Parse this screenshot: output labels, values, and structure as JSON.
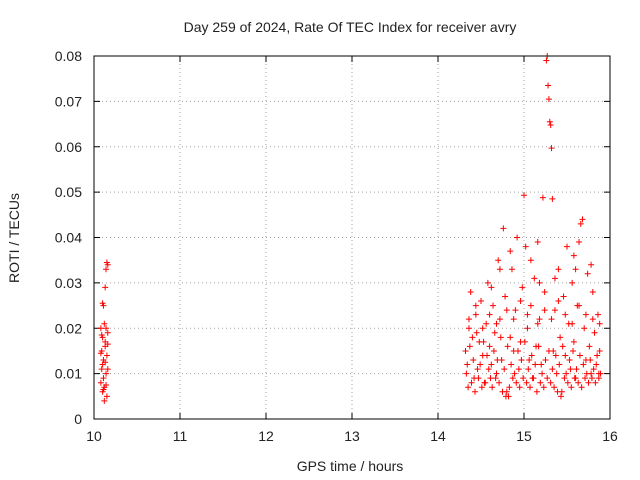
{
  "chart_data": {
    "type": "scatter",
    "title": "Day 259 of 2024, Rate Of TEC Index for receiver avry",
    "xlabel": "GPS time / hours",
    "ylabel": "ROTI / TECUs",
    "xlim": [
      10,
      16
    ],
    "ylim": [
      0,
      0.08
    ],
    "xticks": [
      10,
      11,
      12,
      13,
      14,
      15,
      16
    ],
    "xtick_labels": [
      "10",
      "11",
      "12",
      "13",
      "14",
      "15",
      "16"
    ],
    "yticks": [
      0,
      0.01,
      0.02,
      0.03,
      0.04,
      0.05,
      0.06,
      0.07,
      0.08
    ],
    "ytick_labels": [
      "0",
      "0.01",
      "0.02",
      "0.03",
      "0.04",
      "0.05",
      "0.06",
      "0.07",
      "0.08"
    ],
    "grid": true,
    "marker": "+",
    "color": "#ff0000",
    "series": [
      {
        "name": "ROTI",
        "points": [
          [
            10.08,
            0.02
          ],
          [
            10.09,
            0.015
          ],
          [
            10.1,
            0.018
          ],
          [
            10.1,
            0.012
          ],
          [
            10.11,
            0.009
          ],
          [
            10.12,
            0.021
          ],
          [
            10.13,
            0.017
          ],
          [
            10.14,
            0.01
          ],
          [
            10.15,
            0.014
          ],
          [
            10.16,
            0.019
          ],
          [
            10.08,
            0.008
          ],
          [
            10.09,
            0.011
          ],
          [
            10.1,
            0.006
          ],
          [
            10.11,
            0.013
          ],
          [
            10.12,
            0.007
          ],
          [
            10.13,
            0.016
          ],
          [
            10.14,
            0.02
          ],
          [
            10.15,
            0.005
          ],
          [
            10.12,
            0.004
          ],
          [
            10.16,
            0.011
          ],
          [
            10.1,
            0.0255
          ],
          [
            10.11,
            0.025
          ],
          [
            10.13,
            0.029
          ],
          [
            10.14,
            0.033
          ],
          [
            10.16,
            0.034
          ],
          [
            10.15,
            0.0345
          ],
          [
            10.09,
            0.0185
          ],
          [
            10.13,
            0.0125
          ],
          [
            10.11,
            0.0065
          ],
          [
            10.14,
            0.0075
          ],
          [
            10.16,
            0.0165
          ],
          [
            10.08,
            0.0145
          ],
          [
            14.32,
            0.015
          ],
          [
            14.34,
            0.012
          ],
          [
            14.36,
            0.02
          ],
          [
            14.38,
            0.028
          ],
          [
            14.4,
            0.018
          ],
          [
            14.42,
            0.009
          ],
          [
            14.44,
            0.023
          ],
          [
            14.46,
            0.011
          ],
          [
            14.48,
            0.017
          ],
          [
            14.5,
            0.026
          ],
          [
            14.52,
            0.014
          ],
          [
            14.54,
            0.008
          ],
          [
            14.56,
            0.021
          ],
          [
            14.58,
            0.03
          ],
          [
            14.6,
            0.016
          ],
          [
            14.62,
            0.012
          ],
          [
            14.64,
            0.025
          ],
          [
            14.66,
            0.019
          ],
          [
            14.68,
            0.01
          ],
          [
            14.7,
            0.035
          ],
          [
            14.72,
            0.022
          ],
          [
            14.74,
            0.013
          ],
          [
            14.76,
            0.042
          ],
          [
            14.78,
            0.027
          ],
          [
            14.8,
            0.006
          ],
          [
            14.82,
            0.005
          ],
          [
            14.84,
            0.018
          ],
          [
            14.86,
            0.033
          ],
          [
            14.88,
            0.015
          ],
          [
            14.9,
            0.024
          ],
          [
            14.92,
            0.04
          ],
          [
            14.94,
            0.011
          ],
          [
            14.96,
            0.017
          ],
          [
            14.98,
            0.029
          ],
          [
            15.0,
            0.0493
          ],
          [
            15.02,
            0.038
          ],
          [
            15.04,
            0.02
          ],
          [
            15.06,
            0.013
          ],
          [
            15.08,
            0.025
          ],
          [
            15.1,
            0.009
          ],
          [
            15.12,
            0.031
          ],
          [
            15.14,
            0.016
          ],
          [
            15.16,
            0.039
          ],
          [
            15.18,
            0.022
          ],
          [
            15.2,
            0.012
          ],
          [
            15.22,
            0.0488
          ],
          [
            15.24,
            0.028
          ],
          [
            15.26,
            0.079
          ],
          [
            15.27,
            0.08
          ],
          [
            15.28,
            0.0735
          ],
          [
            15.29,
            0.0705
          ],
          [
            15.3,
            0.0655
          ],
          [
            15.31,
            0.0648
          ],
          [
            15.32,
            0.0597
          ],
          [
            15.33,
            0.0485
          ],
          [
            15.34,
            0.015
          ],
          [
            15.36,
            0.024
          ],
          [
            15.38,
            0.01
          ],
          [
            15.4,
            0.033
          ],
          [
            15.42,
            0.018
          ],
          [
            15.44,
            0.006
          ],
          [
            15.46,
            0.027
          ],
          [
            15.48,
            0.014
          ],
          [
            15.5,
            0.038
          ],
          [
            15.52,
            0.021
          ],
          [
            15.54,
            0.011
          ],
          [
            15.56,
            0.03
          ],
          [
            15.58,
            0.017
          ],
          [
            15.6,
            0.009
          ],
          [
            15.62,
            0.025
          ],
          [
            15.64,
            0.039
          ],
          [
            15.66,
            0.043
          ],
          [
            15.68,
            0.044
          ],
          [
            15.7,
            0.02
          ],
          [
            15.72,
            0.013
          ],
          [
            15.74,
            0.032
          ],
          [
            15.76,
            0.016
          ],
          [
            15.78,
            0.01
          ],
          [
            15.8,
            0.028
          ],
          [
            15.82,
            0.019
          ],
          [
            15.84,
            0.012
          ],
          [
            15.86,
            0.023
          ],
          [
            15.88,
            0.015
          ],
          [
            14.33,
            0.01
          ],
          [
            14.37,
            0.016
          ],
          [
            14.41,
            0.013
          ],
          [
            14.45,
            0.019
          ],
          [
            14.49,
            0.012
          ],
          [
            14.53,
            0.017
          ],
          [
            14.57,
            0.014
          ],
          [
            14.61,
            0.009
          ],
          [
            14.65,
            0.015
          ],
          [
            14.69,
            0.013
          ],
          [
            14.73,
            0.018
          ],
          [
            14.77,
            0.011
          ],
          [
            14.81,
            0.016
          ],
          [
            14.85,
            0.012
          ],
          [
            14.89,
            0.01
          ],
          [
            14.93,
            0.015
          ],
          [
            14.97,
            0.013
          ],
          [
            15.01,
            0.017
          ],
          [
            15.05,
            0.011
          ],
          [
            15.09,
            0.014
          ],
          [
            15.13,
            0.012
          ],
          [
            15.17,
            0.016
          ],
          [
            15.21,
            0.01
          ],
          [
            15.25,
            0.013
          ],
          [
            15.29,
            0.015
          ],
          [
            15.33,
            0.011
          ],
          [
            15.37,
            0.014
          ],
          [
            15.41,
            0.012
          ],
          [
            15.45,
            0.016
          ],
          [
            15.49,
            0.01
          ],
          [
            15.53,
            0.013
          ],
          [
            15.57,
            0.015
          ],
          [
            15.61,
            0.011
          ],
          [
            15.65,
            0.014
          ],
          [
            15.69,
            0.012
          ],
          [
            15.73,
            0.01
          ],
          [
            15.77,
            0.013
          ],
          [
            15.81,
            0.011
          ],
          [
            15.85,
            0.014
          ],
          [
            15.87,
            0.01
          ],
          [
            14.35,
            0.007
          ],
          [
            14.39,
            0.008
          ],
          [
            14.43,
            0.006
          ],
          [
            14.47,
            0.009
          ],
          [
            14.51,
            0.007
          ],
          [
            14.55,
            0.008
          ],
          [
            14.59,
            0.011
          ],
          [
            14.63,
            0.007
          ],
          [
            14.67,
            0.009
          ],
          [
            14.71,
            0.008
          ],
          [
            14.75,
            0.006
          ],
          [
            14.79,
            0.005
          ],
          [
            14.83,
            0.007
          ],
          [
            14.87,
            0.009
          ],
          [
            14.91,
            0.008
          ],
          [
            14.95,
            0.007
          ],
          [
            14.99,
            0.009
          ],
          [
            15.03,
            0.008
          ],
          [
            15.07,
            0.007
          ],
          [
            15.11,
            0.009
          ],
          [
            15.15,
            0.006
          ],
          [
            15.19,
            0.008
          ],
          [
            15.23,
            0.007
          ],
          [
            15.27,
            0.009
          ],
          [
            15.31,
            0.008
          ],
          [
            15.35,
            0.007
          ],
          [
            15.39,
            0.006
          ],
          [
            15.43,
            0.005
          ],
          [
            15.47,
            0.009
          ],
          [
            15.51,
            0.008
          ],
          [
            15.55,
            0.007
          ],
          [
            15.59,
            0.009
          ],
          [
            15.63,
            0.008
          ],
          [
            15.67,
            0.007
          ],
          [
            15.71,
            0.009
          ],
          [
            15.75,
            0.008
          ],
          [
            15.79,
            0.009
          ],
          [
            15.83,
            0.008
          ],
          [
            15.87,
            0.009
          ],
          [
            15.89,
            0.01
          ],
          [
            14.36,
            0.022
          ],
          [
            14.44,
            0.025
          ],
          [
            14.52,
            0.02
          ],
          [
            14.6,
            0.023
          ],
          [
            14.68,
            0.021
          ],
          [
            14.72,
            0.033
          ],
          [
            14.8,
            0.024
          ],
          [
            14.88,
            0.022
          ],
          [
            14.96,
            0.026
          ],
          [
            15.04,
            0.023
          ],
          [
            15.08,
            0.035
          ],
          [
            15.16,
            0.021
          ],
          [
            15.24,
            0.024
          ],
          [
            15.32,
            0.022
          ],
          [
            15.4,
            0.026
          ],
          [
            15.48,
            0.023
          ],
          [
            15.56,
            0.021
          ],
          [
            15.64,
            0.025
          ],
          [
            15.72,
            0.023
          ],
          [
            15.8,
            0.022
          ],
          [
            15.88,
            0.021
          ],
          [
            14.62,
            0.029
          ],
          [
            14.84,
            0.037
          ],
          [
            15.18,
            0.03
          ],
          [
            15.36,
            0.031
          ],
          [
            15.58,
            0.036
          ],
          [
            15.78,
            0.034
          ],
          [
            15.6,
            0.033
          ]
        ]
      }
    ]
  }
}
